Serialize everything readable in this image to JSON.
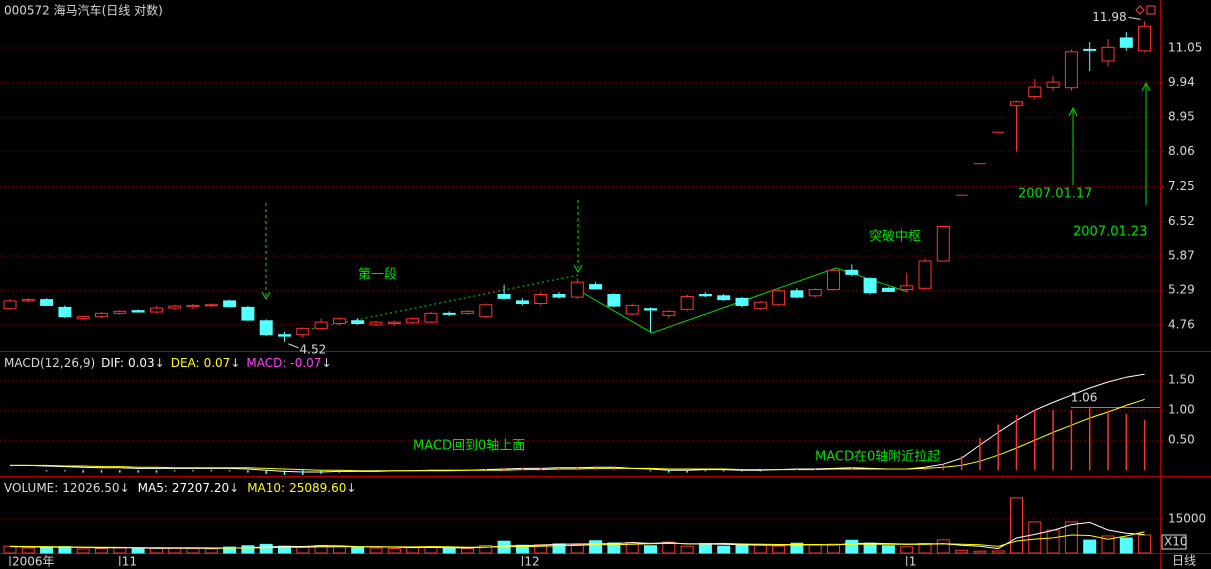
{
  "chart_data": [
    {
      "type": "candlestick",
      "title": "000572 海马汽车(日线 对数)",
      "categories": [
        "2006年",
        null,
        null,
        null,
        null,
        null,
        "11",
        null,
        null,
        null,
        null,
        null,
        null,
        null,
        null,
        null,
        null,
        null,
        null,
        null,
        null,
        null,
        null,
        null,
        null,
        null,
        null,
        null,
        "12",
        null,
        null,
        null,
        null,
        null,
        null,
        null,
        null,
        null,
        null,
        null,
        null,
        null,
        null,
        null,
        null,
        null,
        null,
        null,
        null,
        "1",
        null,
        null,
        null,
        null,
        null,
        null,
        null,
        null,
        null,
        null,
        null,
        null,
        null
      ],
      "open": [
        5.0,
        5.12,
        5.14,
        5.02,
        4.85,
        4.88,
        4.93,
        4.97,
        4.95,
        5.01,
        5.03,
        5.05,
        5.12,
        5.02,
        4.82,
        4.62,
        4.62,
        4.71,
        4.78,
        4.82,
        4.76,
        4.78,
        4.79,
        4.8,
        4.93,
        4.93,
        4.88,
        5.22,
        5.12,
        5.08,
        5.22,
        5.18,
        5.38,
        5.22,
        4.92,
        5.0,
        4.9,
        4.99,
        5.22,
        5.2,
        5.16,
        5.0,
        5.06,
        5.28,
        5.2,
        5.3,
        5.62,
        5.48,
        5.32,
        5.3,
        5.32,
        5.78,
        7.06,
        7.77,
        8.55,
        9.28,
        9.53,
        9.8,
        9.79,
        11.0,
        10.62,
        11.39,
        10.95
      ],
      "high": [
        5.15,
        5.16,
        5.16,
        5.05,
        4.89,
        4.95,
        4.98,
        4.99,
        5.04,
        5.06,
        5.07,
        5.08,
        5.14,
        5.04,
        4.84,
        4.66,
        4.72,
        4.85,
        4.87,
        4.86,
        4.82,
        4.82,
        4.87,
        4.95,
        4.96,
        4.98,
        5.08,
        5.38,
        5.16,
        5.25,
        5.26,
        5.48,
        5.42,
        5.24,
        5.08,
        5.02,
        4.98,
        5.22,
        5.26,
        5.23,
        5.18,
        5.12,
        5.3,
        5.32,
        5.32,
        5.65,
        5.72,
        5.5,
        5.34,
        5.58,
        5.82,
        6.42,
        7.06,
        7.77,
        8.55,
        9.41,
        10.05,
        10.15,
        11.0,
        11.25,
        11.35,
        11.6,
        11.98
      ],
      "low": [
        4.98,
        5.1,
        5.04,
        4.86,
        4.83,
        4.86,
        4.91,
        4.94,
        4.93,
        4.98,
        4.99,
        5.02,
        5.02,
        4.82,
        4.6,
        4.52,
        4.58,
        4.7,
        4.75,
        4.76,
        4.74,
        4.75,
        4.77,
        4.79,
        4.89,
        4.91,
        4.86,
        5.14,
        5.05,
        5.05,
        5.16,
        5.15,
        5.3,
        5.02,
        4.9,
        4.66,
        4.86,
        4.96,
        5.18,
        5.12,
        5.02,
        4.98,
        5.04,
        5.16,
        5.18,
        5.28,
        5.52,
        5.22,
        5.26,
        5.26,
        5.3,
        5.78,
        7.06,
        7.77,
        8.55,
        8.06,
        9.45,
        9.7,
        9.7,
        10.3,
        10.45,
        10.95,
        10.9
      ],
      "close": [
        5.12,
        5.14,
        5.05,
        4.88,
        4.88,
        4.93,
        4.96,
        4.95,
        5.01,
        5.04,
        5.05,
        5.06,
        5.03,
        4.83,
        4.62,
        4.6,
        4.71,
        4.8,
        4.85,
        4.78,
        4.8,
        4.8,
        4.85,
        4.93,
        4.92,
        4.96,
        5.06,
        5.16,
        5.08,
        5.22,
        5.18,
        5.42,
        5.31,
        5.04,
        5.05,
        4.98,
        4.96,
        5.19,
        5.2,
        5.14,
        5.05,
        5.1,
        5.28,
        5.18,
        5.3,
        5.62,
        5.55,
        5.25,
        5.27,
        5.36,
        5.78,
        6.42,
        7.06,
        7.77,
        8.55,
        9.38,
        9.81,
        9.96,
        10.92,
        10.98,
        11.07,
        11.07,
        11.8
      ],
      "up_color": "#ff3232",
      "down_color": "#54ffff",
      "log_scale": true,
      "ylim": [
        4.41,
        12.4
      ],
      "yticks": [
        4.76,
        5.29,
        5.87,
        6.52,
        7.25,
        8.06,
        8.95,
        9.94,
        11.05
      ],
      "grid": true,
      "annotations": [
        "第一段",
        "突破中枢",
        "2007.01.17",
        "2007.01.23"
      ]
    },
    {
      "type": "macd",
      "title": "MACD(12,26,9)",
      "series": [
        {
          "name": "DIF:",
          "color": "#ffffff",
          "current": 0.03,
          "arrow": "↓",
          "values": [
            0.08,
            0.08,
            0.07,
            0.06,
            0.05,
            0.04,
            0.04,
            0.03,
            0.03,
            0.03,
            0.03,
            0.03,
            0.03,
            0.02,
            0.0,
            -0.02,
            -0.03,
            -0.03,
            -0.02,
            -0.02,
            -0.02,
            -0.01,
            -0.01,
            0.0,
            0.0,
            0.0,
            0.01,
            0.02,
            0.03,
            0.03,
            0.04,
            0.04,
            0.05,
            0.05,
            0.03,
            0.02,
            0.0,
            0.0,
            0.01,
            0.01,
            0.0,
            0.0,
            0.01,
            0.02,
            0.02,
            0.03,
            0.04,
            0.03,
            0.02,
            0.02,
            0.05,
            0.1,
            0.2,
            0.42,
            0.63,
            0.83,
            1.0,
            1.13,
            1.25,
            1.37,
            1.47,
            1.55,
            1.6
          ]
        },
        {
          "name": "DEA:",
          "color": "#ffff00",
          "current": 0.07,
          "arrow": "↓",
          "values": [
            0.08,
            0.08,
            0.08,
            0.07,
            0.07,
            0.06,
            0.06,
            0.05,
            0.05,
            0.04,
            0.04,
            0.04,
            0.04,
            0.04,
            0.03,
            0.02,
            0.01,
            0.0,
            0.0,
            -0.01,
            -0.01,
            -0.01,
            -0.01,
            -0.01,
            -0.01,
            0.0,
            0.0,
            0.0,
            0.01,
            0.01,
            0.02,
            0.02,
            0.03,
            0.03,
            0.03,
            0.03,
            0.02,
            0.02,
            0.02,
            0.02,
            0.01,
            0.01,
            0.01,
            0.01,
            0.01,
            0.02,
            0.02,
            0.02,
            0.02,
            0.02,
            0.03,
            0.05,
            0.08,
            0.15,
            0.25,
            0.37,
            0.5,
            0.63,
            0.75,
            0.87,
            0.97,
            1.08,
            1.18
          ]
        },
        {
          "name": "MACD:",
          "color": "#ff40ff",
          "current": -0.07,
          "arrow": "↓",
          "up_color": "#ff3232",
          "down_color": "#54ffff",
          "values": [
            0,
            0,
            -0.02,
            -0.02,
            -0.04,
            -0.04,
            -0.04,
            -0.04,
            -0.04,
            -0.02,
            -0.02,
            -0.02,
            -0.02,
            -0.04,
            -0.06,
            -0.08,
            -0.08,
            -0.06,
            -0.04,
            -0.02,
            -0.02,
            0,
            0,
            0.02,
            0.02,
            0,
            0.02,
            0.04,
            0.04,
            0.04,
            0.04,
            0.04,
            0.04,
            0.04,
            0,
            -0.02,
            -0.04,
            -0.04,
            -0.02,
            -0.02,
            -0.02,
            -0.02,
            0,
            0.02,
            0.02,
            0.02,
            0.04,
            0.02,
            0,
            0,
            0.04,
            0.1,
            0.24,
            0.54,
            0.76,
            0.92,
            1.0,
            1.0,
            1.0,
            1.06,
            1.0,
            0.94,
            0.84
          ]
        }
      ],
      "ylim": [
        -0.08,
        1.97
      ],
      "yticks": [
        {
          "value": 0.5,
          "label": "0.50"
        },
        {
          "value": 1,
          "label": "1.00"
        },
        {
          "value": 1.5,
          "label": "1.50"
        }
      ],
      "grid": true,
      "annotations": [
        "MACD回到0轴上面",
        "MACD在0轴附近拉起"
      ]
    },
    {
      "type": "volume",
      "title": "VOLUME:",
      "current": {
        "value": 12026.5,
        "label": "12026.50"
      },
      "arrow": "↓",
      "values": [
        3000,
        2200,
        2500,
        2800,
        1800,
        2000,
        2200,
        1900,
        2300,
        2100,
        2000,
        1800,
        2600,
        3200,
        3800,
        3000,
        2700,
        3300,
        2900,
        2500,
        2200,
        2000,
        2400,
        2800,
        2100,
        2000,
        3300,
        5200,
        3400,
        3600,
        4000,
        3600,
        5400,
        4400,
        4600,
        3200,
        4800,
        3000,
        4200,
        3000,
        3400,
        3800,
        3100,
        4300,
        3600,
        3900,
        5600,
        4300,
        3200,
        2700,
        4200,
        5800,
        1200,
        800,
        900,
        24300,
        13700,
        10100,
        13700,
        5700,
        7500,
        6600,
        7900
      ],
      "series": [
        {
          "name": "MA5:",
          "color": "#ffffff",
          "current": {
            "value": 27207.2,
            "label": "27207.20"
          },
          "arrow": "↓",
          "values": [
            2800,
            2700,
            2600,
            2550,
            2460,
            2260,
            2340,
            2240,
            2040,
            2100,
            2060,
            2020,
            2140,
            2300,
            2680,
            2880,
            2860,
            3200,
            3140,
            2840,
            2720,
            2580,
            2400,
            2460,
            2300,
            2260,
            2520,
            3080,
            3200,
            3500,
            3900,
            3960,
            4000,
            4160,
            4600,
            4240,
            4480,
            4000,
            3960,
            3840,
            3680,
            3480,
            3500,
            3560,
            3640,
            3540,
            4180,
            4260,
            4160,
            3940,
            4000,
            4040,
            3380,
            2940,
            1920,
            6600,
            8180,
            9960,
            12540,
            13500,
            10140,
            8720,
            8160
          ]
        },
        {
          "name": "MA10:",
          "color": "#ffff00",
          "current": {
            "value": 25089.6,
            "label": "25089.60"
          },
          "arrow": "↓",
          "values": [
            2900,
            2850,
            2800,
            2700,
            2600,
            2500,
            2450,
            2400,
            2350,
            2300,
            2280,
            2250,
            2200,
            2200,
            2350,
            2500,
            2550,
            2680,
            2720,
            2760,
            2780,
            2700,
            2680,
            2800,
            2720,
            2560,
            2640,
            2740,
            2800,
            2980,
            3200,
            3360,
            3600,
            3680,
            3900,
            4080,
            4220,
            4080,
            4060,
            4220,
            3960,
            3860,
            3740,
            3760,
            3740,
            3610,
            3830,
            3870,
            3850,
            3790,
            3770,
            4110,
            3820,
            3600,
            2930,
            5300,
            6110,
            6670,
            7950,
            7710,
            6070,
            7490,
            9340
          ]
        }
      ],
      "ylim": [
        0,
        33500
      ],
      "yticks": [
        15000
      ],
      "grid": true,
      "unit": "X10",
      "period": "日线"
    }
  ]
}
